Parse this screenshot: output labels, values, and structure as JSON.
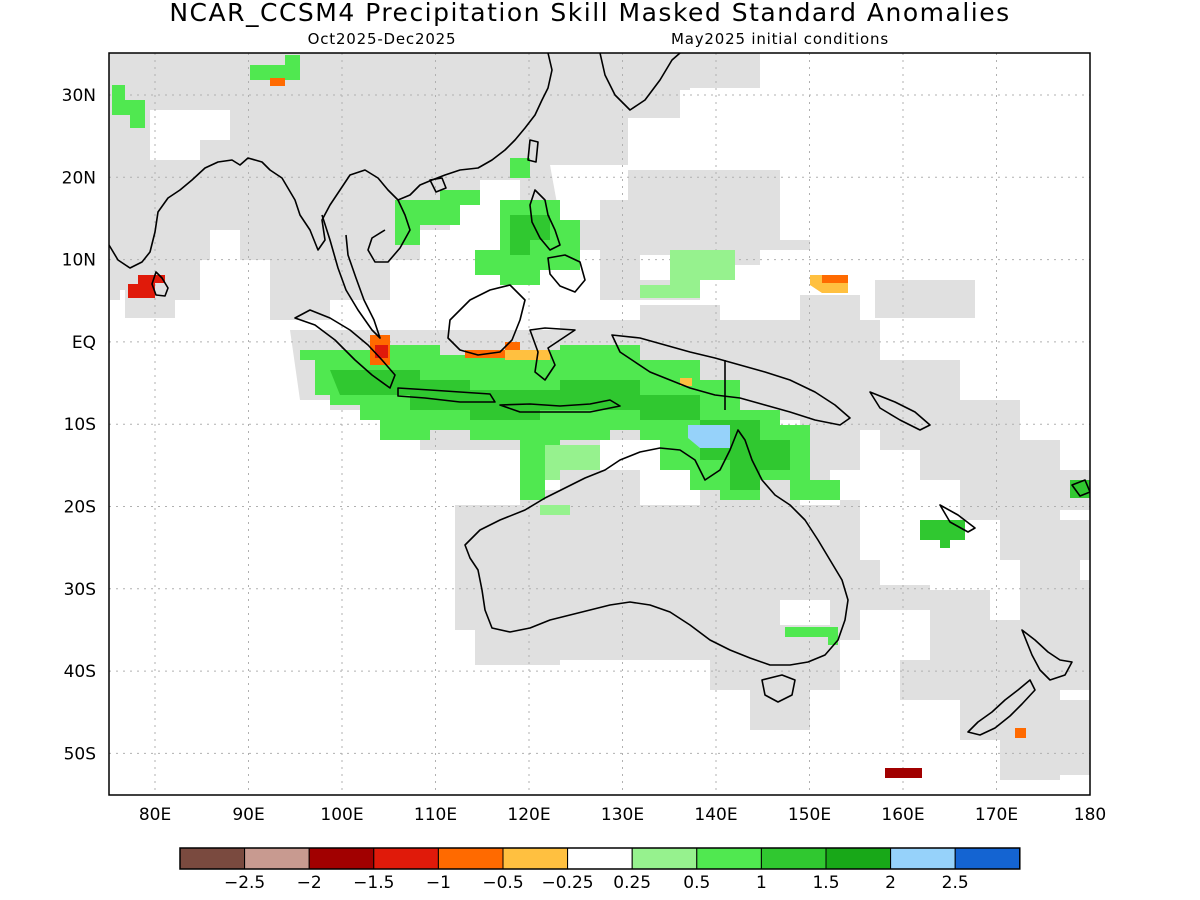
{
  "title": "NCAR_CCSM4 Precipitation Skill Masked Standard Anomalies",
  "subtitle_left": "Oct2025-Dec2025",
  "subtitle_right": "May2025 initial conditions",
  "lon_labels": [
    "80E",
    "90E",
    "100E",
    "110E",
    "120E",
    "130E",
    "140E",
    "150E",
    "160E",
    "170E",
    "180"
  ],
  "lat_labels": [
    "30N",
    "20N",
    "10N",
    "EQ",
    "10S",
    "20S",
    "30S",
    "40S",
    "50S"
  ],
  "colorbar": {
    "colors": [
      "#7a4a3f",
      "#c89a90",
      "#a10000",
      "#e01a0a",
      "#ff6a00",
      "#ffc040",
      "#ffffff",
      "#96f28e",
      "#50e850",
      "#30c830",
      "#18a818",
      "#96d2fa",
      "#1464d2"
    ],
    "labels": [
      "-2.5",
      "-2",
      "-1.5",
      "-1",
      "-0.5",
      "-0.25",
      "0.25",
      "0.5",
      "1",
      "1.5",
      "2",
      "2.5"
    ]
  },
  "colors": {
    "mask_gray": "#e0e0e0",
    "coast": "#000000",
    "grid": "#b0b0b0"
  }
}
